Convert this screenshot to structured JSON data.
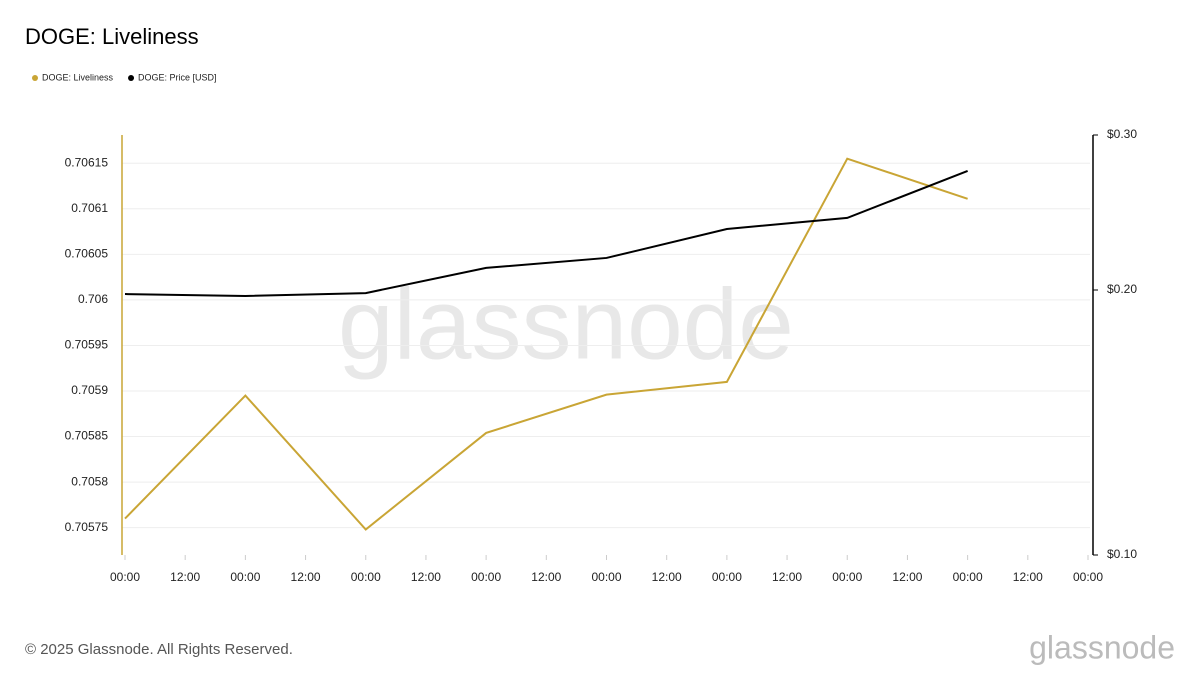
{
  "chart_data": {
    "type": "line",
    "title": "DOGE: Liveliness",
    "x": [
      0,
      24,
      48,
      72,
      96,
      120,
      144,
      168
    ],
    "xlim": [
      0,
      192
    ],
    "xticks": [
      {
        "value": 0,
        "label": "00:00"
      },
      {
        "value": 12,
        "label": "12:00"
      },
      {
        "value": 24,
        "label": "00:00"
      },
      {
        "value": 36,
        "label": "12:00"
      },
      {
        "value": 48,
        "label": "00:00"
      },
      {
        "value": 60,
        "label": "12:00"
      },
      {
        "value": 72,
        "label": "00:00"
      },
      {
        "value": 84,
        "label": "12:00"
      },
      {
        "value": 96,
        "label": "00:00"
      },
      {
        "value": 108,
        "label": "12:00"
      },
      {
        "value": 120,
        "label": "00:00"
      },
      {
        "value": 132,
        "label": "12:00"
      },
      {
        "value": 144,
        "label": "00:00"
      },
      {
        "value": 156,
        "label": "12:00"
      },
      {
        "value": 168,
        "label": "00:00"
      },
      {
        "value": 180,
        "label": "12:00"
      },
      {
        "value": 192,
        "label": "00:00"
      }
    ],
    "ylim": [
      0.70572,
      0.706181
    ],
    "yticks": [
      0.70575,
      0.7058,
      0.70585,
      0.7059,
      0.70595,
      0.706,
      0.70605,
      0.7061,
      0.70615
    ],
    "y2lim": [
      0.1,
      0.3
    ],
    "y2log": true,
    "y2ticks": [
      {
        "value": 0.1,
        "label": "$0.10"
      },
      {
        "value": 0.2,
        "label": "$0.20"
      },
      {
        "value": 0.3,
        "label": "$0.30"
      }
    ],
    "grid": true,
    "legend": "top-left",
    "series": [
      {
        "name": "DOGE: Liveliness",
        "color": "#c9a535",
        "values": [
          0.70576,
          0.705895,
          0.705748,
          0.705854,
          0.705896,
          0.70591,
          0.706155,
          0.706111
        ]
      },
      {
        "name": "DOGE: Price [USD]",
        "color": "#000000",
        "axis": "y2",
        "values": [
          0.1979,
          0.1969,
          0.1984,
          0.2119,
          0.2175,
          0.2346,
          0.2415,
          0.2731
        ]
      }
    ]
  },
  "watermark": "glassnode",
  "footer": "© 2025 Glassnode. All Rights Reserved.",
  "logo": "glassnode"
}
